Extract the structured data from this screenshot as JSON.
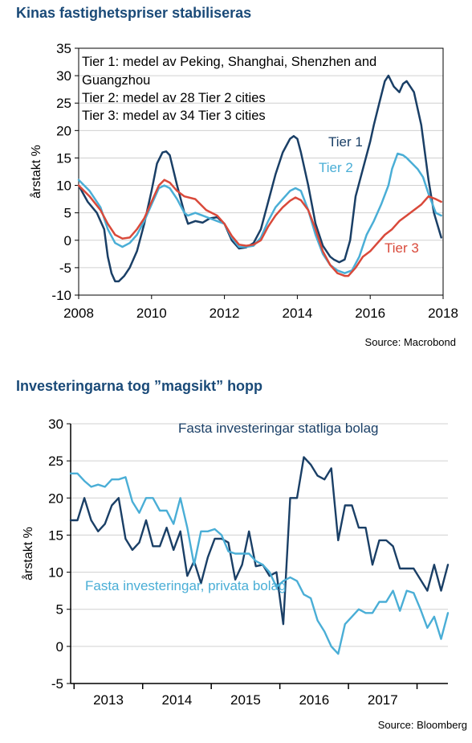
{
  "charts": {
    "chart1": {
      "title": "Kinas fastighetspriser stabiliseras",
      "source": "Source: Macrobond",
      "notes": [
        "Tier 1: medel av Peking, Shanghai, Shenzhen and",
        "Guangzhou",
        "Tier 2: medel av 28 Tier 2 cities",
        "Tier 3: medel av 34 Tier 3 cities"
      ]
    },
    "chart2": {
      "title": "Investeringarna tog ”magsikt” hopp",
      "source": "Source: Bloomberg"
    }
  },
  "chart_data": [
    {
      "type": "line",
      "title": "Kinas fastighetspriser stabiliseras",
      "ylabel": "årstakt %",
      "xlabel": "",
      "xlim": [
        2008,
        2018
      ],
      "ylim": [
        -10,
        35
      ],
      "xticks": [
        "2008",
        "2010",
        "2012",
        "2014",
        "2016",
        "2018"
      ],
      "yticks": [
        "35",
        "30",
        "25",
        "20",
        "15",
        "10",
        "5",
        "0",
        "-5",
        "-10"
      ],
      "grid": true,
      "series": [
        {
          "name": "Tier 1",
          "color": "#1a3f66",
          "label_x": 2007.8,
          "label_y": 16.0,
          "x": [
            2008.0,
            2008.25,
            2008.5,
            2008.7,
            2008.8,
            2008.9,
            2009.0,
            2009.1,
            2009.25,
            2009.4,
            2009.6,
            2009.8,
            2010.0,
            2010.15,
            2010.3,
            2010.4,
            2010.5,
            2010.7,
            2010.9,
            2011.0,
            2011.2,
            2011.4,
            2011.6,
            2011.8,
            2012.0,
            2012.2,
            2012.4,
            2012.6,
            2012.8,
            2013.0,
            2013.2,
            2013.4,
            2013.6,
            2013.8,
            2013.9,
            2014.0,
            2014.1,
            2014.3,
            2014.5,
            2014.7,
            2014.9,
            2015.0,
            2015.15,
            2015.3,
            2015.45,
            2015.6,
            2015.8,
            2016.0,
            2016.1,
            2016.25,
            2016.4,
            2016.5,
            2016.65,
            2016.8,
            2016.9,
            2017.0,
            2017.2,
            2017.4,
            2017.5,
            2017.6,
            2017.75,
            2017.95
          ],
          "values": [
            10.0,
            7.0,
            5.0,
            2.0,
            -3.0,
            -6.0,
            -7.5,
            -7.5,
            -6.5,
            -5.0,
            -2.0,
            3.0,
            9.0,
            14.0,
            16.0,
            16.2,
            15.5,
            10.0,
            5.0,
            3.0,
            3.5,
            3.2,
            4.0,
            4.2,
            3.0,
            0.0,
            -1.5,
            -1.3,
            -0.5,
            2.0,
            7.0,
            12.0,
            16.0,
            18.5,
            19.0,
            18.5,
            16.0,
            10.0,
            3.0,
            -1.0,
            -3.0,
            -3.5,
            -4.0,
            -3.5,
            0.0,
            8.0,
            13.0,
            18.0,
            21.0,
            25.0,
            29.0,
            30.0,
            28.0,
            27.0,
            28.5,
            29.0,
            27.0,
            21.0,
            16.0,
            11.0,
            5.0,
            0.5
          ]
        },
        {
          "name": "Tier 2",
          "color": "#4aaed6",
          "label_x": 2007.7,
          "label_y": 12.5,
          "x": [
            2008.0,
            2008.3,
            2008.6,
            2008.8,
            2009.0,
            2009.2,
            2009.4,
            2009.6,
            2009.8,
            2010.0,
            2010.2,
            2010.35,
            2010.5,
            2010.7,
            2010.9,
            2011.0,
            2011.2,
            2011.4,
            2011.6,
            2011.8,
            2012.0,
            2012.2,
            2012.4,
            2012.6,
            2012.8,
            2013.0,
            2013.2,
            2013.4,
            2013.6,
            2013.8,
            2013.95,
            2014.1,
            2014.3,
            2014.5,
            2014.7,
            2014.9,
            2015.1,
            2015.3,
            2015.5,
            2015.7,
            2015.9,
            2016.1,
            2016.3,
            2016.5,
            2016.6,
            2016.75,
            2016.9,
            2017.0,
            2017.15,
            2017.3,
            2017.45,
            2017.6,
            2017.8,
            2017.95
          ],
          "values": [
            11.0,
            9.0,
            6.0,
            2.0,
            -0.5,
            -1.2,
            -0.5,
            1.0,
            3.5,
            6.5,
            9.5,
            10.0,
            9.5,
            7.5,
            5.0,
            4.5,
            5.0,
            4.5,
            4.0,
            3.5,
            3.0,
            0.5,
            -1.2,
            -1.2,
            -1.0,
            0.5,
            3.5,
            6.0,
            7.5,
            9.0,
            9.5,
            9.0,
            5.5,
            1.0,
            -2.5,
            -4.5,
            -5.5,
            -6.0,
            -5.5,
            -3.0,
            1.0,
            3.5,
            6.5,
            10.0,
            13.0,
            15.8,
            15.5,
            15.0,
            14.0,
            13.0,
            11.5,
            8.5,
            5.0,
            4.5
          ]
        },
        {
          "name": "Tier 3",
          "color": "#d9493a",
          "label_x": 2015.7,
          "label_y": -2.0,
          "x": [
            2008.0,
            2008.3,
            2008.6,
            2008.8,
            2009.0,
            2009.2,
            2009.4,
            2009.6,
            2009.8,
            2010.0,
            2010.2,
            2010.35,
            2010.5,
            2010.7,
            2010.9,
            2011.2,
            2011.5,
            2011.8,
            2012.0,
            2012.2,
            2012.4,
            2012.6,
            2012.8,
            2013.0,
            2013.2,
            2013.4,
            2013.6,
            2013.8,
            2013.95,
            2014.1,
            2014.3,
            2014.5,
            2014.7,
            2014.9,
            2015.1,
            2015.3,
            2015.4,
            2015.6,
            2015.8,
            2016.0,
            2016.2,
            2016.4,
            2016.6,
            2016.8,
            2017.0,
            2017.2,
            2017.4,
            2017.6,
            2017.8,
            2017.95
          ],
          "values": [
            10.0,
            8.0,
            5.5,
            3.0,
            1.0,
            0.3,
            0.5,
            2.0,
            4.0,
            7.0,
            10.0,
            11.0,
            10.5,
            9.0,
            8.0,
            7.5,
            5.5,
            4.5,
            3.0,
            0.8,
            -0.8,
            -1.0,
            -0.8,
            0.0,
            2.5,
            4.5,
            6.0,
            7.2,
            7.8,
            7.3,
            5.5,
            2.0,
            -2.0,
            -4.5,
            -6.0,
            -6.5,
            -6.5,
            -5.0,
            -3.0,
            -2.0,
            -0.5,
            1.0,
            2.0,
            3.5,
            4.5,
            5.5,
            6.5,
            8.0,
            7.5,
            7.0
          ]
        }
      ]
    },
    {
      "type": "line",
      "title": "Investeringarna tog ”magsikt” hopp",
      "ylabel": "årstakt %",
      "xlabel": "",
      "xlim": [
        2012.0,
        2017.5
      ],
      "ylim": [
        -5,
        30
      ],
      "xticks": [
        "2013",
        "2014",
        "2015",
        "2016",
        "2017"
      ],
      "yticks": [
        "30",
        "25",
        "20",
        "15",
        "10",
        "5",
        "0",
        "-5"
      ],
      "grid": true,
      "series": [
        {
          "name": "Fasta investeringar statliga bolag",
          "color": "#1a3f66",
          "label_x": 2013.45,
          "label_y": 27.6,
          "x": [
            2012.0,
            2012.1,
            2012.2,
            2012.3,
            2012.4,
            2012.5,
            2012.6,
            2012.7,
            2012.8,
            2012.9,
            2013.0,
            2013.1,
            2013.2,
            2013.3,
            2013.4,
            2013.5,
            2013.6,
            2013.7,
            2013.8,
            2013.9,
            2014.0,
            2014.1,
            2014.2,
            2014.3,
            2014.4,
            2014.5,
            2014.6,
            2014.7,
            2014.8,
            2014.9,
            2015.0,
            2015.1,
            2015.2,
            2015.3,
            2015.4,
            2015.5,
            2015.6,
            2015.7,
            2015.8,
            2015.9,
            2016.0,
            2016.1,
            2016.2,
            2016.3,
            2016.4,
            2016.5,
            2016.6,
            2016.7,
            2016.8,
            2016.9,
            2017.0,
            2017.1,
            2017.2,
            2017.3,
            2017.4,
            2017.5
          ],
          "values": [
            17,
            17,
            20,
            17,
            15.5,
            16.5,
            19,
            20,
            14.5,
            13,
            14,
            17,
            13.5,
            13.5,
            16,
            13,
            15.5,
            9.5,
            11.5,
            8.5,
            12,
            14.5,
            14.5,
            14,
            9,
            11,
            15.5,
            10.8,
            11,
            9.5,
            10,
            3,
            20,
            20,
            25.5,
            24.5,
            23,
            22.5,
            24,
            14.3,
            19,
            19,
            16,
            16,
            11,
            14.3,
            14.3,
            13.5,
            10.5,
            10.5,
            10.5,
            9,
            7.5,
            11,
            7.5,
            11
          ]
        },
        {
          "name": "Fasta investeringar, privata bolag",
          "color": "#4aaed6",
          "label_x": 2012.2,
          "label_y": 7.1,
          "x": [
            2012.0,
            2012.1,
            2012.2,
            2012.3,
            2012.4,
            2012.5,
            2012.6,
            2012.7,
            2012.8,
            2012.9,
            2013.0,
            2013.1,
            2013.2,
            2013.3,
            2013.4,
            2013.5,
            2013.6,
            2013.7,
            2013.8,
            2013.9,
            2014.0,
            2014.1,
            2014.2,
            2014.3,
            2014.4,
            2014.5,
            2014.6,
            2014.7,
            2014.8,
            2014.9,
            2015.0,
            2015.1,
            2015.2,
            2015.3,
            2015.4,
            2015.5,
            2015.6,
            2015.7,
            2015.8,
            2015.9,
            2016.0,
            2016.1,
            2016.2,
            2016.3,
            2016.4,
            2016.5,
            2016.6,
            2016.7,
            2016.8,
            2016.9,
            2017.0,
            2017.1,
            2017.2,
            2017.3,
            2017.4,
            2017.5
          ],
          "values": [
            23.3,
            23.3,
            22.3,
            21.5,
            21.8,
            21.5,
            22.5,
            22.5,
            22.8,
            19.5,
            18,
            20,
            20,
            18.3,
            18.3,
            16.5,
            20,
            16,
            11,
            15.5,
            15.5,
            15.8,
            15,
            12.8,
            12.5,
            12.5,
            12.5,
            11.5,
            11,
            10,
            8,
            8.8,
            9.3,
            8.8,
            7,
            6.5,
            3.5,
            2,
            0,
            -1,
            3,
            4,
            5,
            4.5,
            4.5,
            6,
            6,
            7.5,
            4.8,
            7.5,
            7.2,
            5,
            2.5,
            4,
            1,
            4.5
          ]
        }
      ]
    }
  ]
}
